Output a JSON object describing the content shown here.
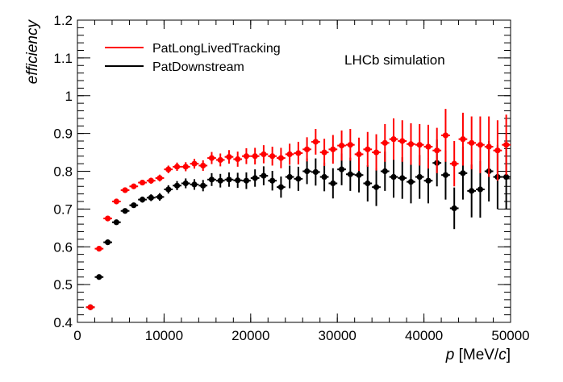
{
  "chart_data": {
    "type": "scatter",
    "title": "",
    "annotation": "LHCb simulation",
    "ylabel": "efficiency",
    "xlabel": {
      "var": "p",
      "unit_open": " [MeV/",
      "unit_var": "c",
      "unit_close": "]"
    },
    "xlim": [
      0,
      50000
    ],
    "ylim": [
      0.4,
      1.2
    ],
    "x_ticks": [
      {
        "v": 0,
        "label": "0"
      },
      {
        "v": 10000,
        "label": "10000"
      },
      {
        "v": 20000,
        "label": "20000"
      },
      {
        "v": 30000,
        "label": "30000"
      },
      {
        "v": 40000,
        "label": "40000"
      },
      {
        "v": 50000,
        "label": "50000"
      }
    ],
    "y_ticks": [
      {
        "v": 0.4,
        "label": "0.4"
      },
      {
        "v": 0.5,
        "label": "0.5"
      },
      {
        "v": 0.6,
        "label": "0.6"
      },
      {
        "v": 0.7,
        "label": "0.7"
      },
      {
        "v": 0.8,
        "label": "0.8"
      },
      {
        "v": 0.9,
        "label": "0.9"
      },
      {
        "v": 1.0,
        "label": "1"
      },
      {
        "v": 1.1,
        "label": "1.1"
      },
      {
        "v": 1.2,
        "label": "1.2"
      }
    ],
    "grid": false,
    "legend_position": "top-left",
    "series": [
      {
        "name": "PatLongLivedTracking",
        "color": "#ff0000",
        "x": [
          1500,
          2500,
          3500,
          4500,
          5500,
          6500,
          7500,
          8500,
          9500,
          10500,
          11500,
          12500,
          13500,
          14500,
          15500,
          16500,
          17500,
          18500,
          19500,
          20500,
          21500,
          22500,
          23500,
          24500,
          25500,
          26500,
          27500,
          28500,
          29500,
          30500,
          31500,
          32500,
          33500,
          34500,
          35500,
          36500,
          37500,
          38500,
          39500,
          40500,
          41500,
          42500,
          43500,
          44500,
          45500,
          46500,
          47500,
          48500,
          49500
        ],
        "y": [
          0.44,
          0.595,
          0.675,
          0.72,
          0.75,
          0.76,
          0.77,
          0.775,
          0.782,
          0.805,
          0.812,
          0.812,
          0.82,
          0.815,
          0.835,
          0.83,
          0.838,
          0.832,
          0.84,
          0.84,
          0.845,
          0.84,
          0.835,
          0.845,
          0.848,
          0.858,
          0.878,
          0.85,
          0.858,
          0.868,
          0.87,
          0.845,
          0.858,
          0.85,
          0.875,
          0.885,
          0.88,
          0.872,
          0.87,
          0.865,
          0.855,
          0.895,
          0.82,
          0.885,
          0.875,
          0.87,
          0.865,
          0.855,
          0.87
        ],
        "err": [
          0.004,
          0.004,
          0.004,
          0.004,
          0.005,
          0.006,
          0.007,
          0.008,
          0.009,
          0.01,
          0.011,
          0.012,
          0.013,
          0.014,
          0.016,
          0.017,
          0.018,
          0.02,
          0.021,
          0.022,
          0.024,
          0.025,
          0.027,
          0.028,
          0.03,
          0.032,
          0.034,
          0.036,
          0.038,
          0.04,
          0.042,
          0.044,
          0.046,
          0.048,
          0.05,
          0.055,
          0.055,
          0.055,
          0.055,
          0.058,
          0.06,
          0.07,
          0.06,
          0.07,
          0.07,
          0.075,
          0.08,
          0.08,
          0.08
        ]
      },
      {
        "name": "PatDownstream",
        "color": "#000000",
        "x": [
          1500,
          2500,
          3500,
          4500,
          5500,
          6500,
          7500,
          8500,
          9500,
          10500,
          11500,
          12500,
          13500,
          14500,
          15500,
          16500,
          17500,
          18500,
          19500,
          20500,
          21500,
          22500,
          23500,
          24500,
          25500,
          26500,
          27500,
          28500,
          29500,
          30500,
          31500,
          32500,
          33500,
          34500,
          35500,
          36500,
          37500,
          38500,
          39500,
          40500,
          41500,
          42500,
          43500,
          44500,
          45500,
          46500,
          47500,
          48500,
          49500
        ],
        "y": [
          0.44,
          0.52,
          0.612,
          0.665,
          0.695,
          0.71,
          0.725,
          0.73,
          0.732,
          0.752,
          0.762,
          0.768,
          0.765,
          0.762,
          0.778,
          0.775,
          0.778,
          0.776,
          0.775,
          0.782,
          0.788,
          0.775,
          0.758,
          0.785,
          0.78,
          0.8,
          0.798,
          0.785,
          0.768,
          0.805,
          0.792,
          0.79,
          0.768,
          0.758,
          0.8,
          0.785,
          0.782,
          0.772,
          0.785,
          0.775,
          0.822,
          0.79,
          0.702,
          0.795,
          0.748,
          0.752,
          0.8,
          0.785,
          0.785
        ],
        "err": [
          0.004,
          0.004,
          0.004,
          0.005,
          0.006,
          0.007,
          0.008,
          0.009,
          0.01,
          0.011,
          0.012,
          0.013,
          0.014,
          0.015,
          0.017,
          0.018,
          0.019,
          0.02,
          0.022,
          0.023,
          0.025,
          0.026,
          0.028,
          0.03,
          0.032,
          0.034,
          0.036,
          0.038,
          0.04,
          0.042,
          0.044,
          0.046,
          0.048,
          0.05,
          0.052,
          0.055,
          0.055,
          0.057,
          0.058,
          0.06,
          0.062,
          0.065,
          0.055,
          0.07,
          0.07,
          0.075,
          0.08,
          0.085,
          0.085
        ]
      }
    ]
  }
}
